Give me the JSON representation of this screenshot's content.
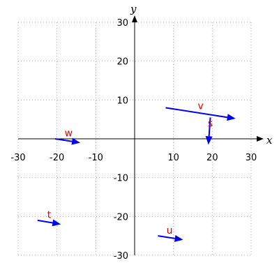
{
  "chart_data": {
    "type": "vector-plot",
    "title": "",
    "xlabel": "x",
    "ylabel": "y",
    "xlim": [
      -30,
      30
    ],
    "ylim": [
      -30,
      30
    ],
    "x_ticks": [
      -30,
      -20,
      -10,
      10,
      20,
      30
    ],
    "y_ticks": [
      -30,
      -20,
      -10,
      10,
      20,
      30
    ],
    "grid": true,
    "vector_color": "#0000ee",
    "label_color": "#dd0000",
    "vectors": [
      {
        "name": "v",
        "tail": [
          8,
          8
        ],
        "head": [
          26,
          5.2
        ],
        "label_pos": [
          17,
          8.5
        ]
      },
      {
        "name": "s",
        "tail": [
          19.5,
          5.5
        ],
        "head": [
          19,
          -1.5
        ],
        "label_pos": [
          19.5,
          4
        ]
      },
      {
        "name": "w",
        "tail": [
          -20.5,
          0
        ],
        "head": [
          -14,
          -1
        ],
        "label_pos": [
          -17,
          1.5
        ]
      },
      {
        "name": "t",
        "tail": [
          -25,
          -21
        ],
        "head": [
          -19,
          -22
        ],
        "label_pos": [
          -22,
          -19.5
        ]
      },
      {
        "name": "u",
        "tail": [
          6,
          -25
        ],
        "head": [
          12.5,
          -26
        ],
        "label_pos": [
          9,
          -23.5
        ]
      }
    ]
  }
}
